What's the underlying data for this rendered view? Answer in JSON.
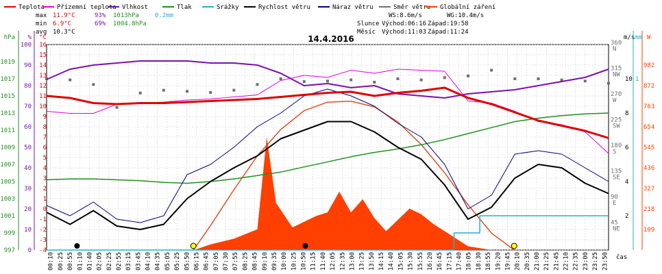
{
  "chart_data": {
    "type": "line",
    "title": "14.4.2016",
    "legend": [
      {
        "label": "Teplota",
        "color": "#e00000"
      },
      {
        "label": "Přízemní teplota",
        "color": "#e000e0"
      },
      {
        "label": "Vlhkost",
        "color": "#7a10b0"
      },
      {
        "label": "Tlak",
        "color": "#209020"
      },
      {
        "label": "Srážky",
        "color": "#20b0d0"
      },
      {
        "label": "Rychlost větru",
        "color": "#000000"
      },
      {
        "label": "Náraz větru",
        "color": "#000080"
      },
      {
        "label": "Směr větru",
        "color": "#707070"
      },
      {
        "label": "Globální záření",
        "color": "#ff4000"
      }
    ],
    "stats": {
      "max": {
        "label": "max",
        "temp": "11.9°C",
        "hum": "93%",
        "press": "1013hPa",
        "rain": "0.2mm"
      },
      "min": {
        "label": "min",
        "temp": "6.9°C",
        "hum": "69%",
        "press": "1004.8hPa"
      },
      "avg": {
        "label": "avg",
        "temp": "10.3°C"
      }
    },
    "info": {
      "ws": "WS:8.6m/s",
      "wg": "WG:10.4m/s",
      "sun_label": "Slunce",
      "sun_rise": "Východ:06:16",
      "sun_set": "Západ:19:58",
      "moon_label": "Měsíc",
      "moon_rise": "Východ:11:03",
      "moon_set": "Západ:11:24"
    },
    "axes": {
      "hpa": {
        "unit": "hPa",
        "ticks": [
          "1019",
          "1017",
          "1015",
          "1013",
          "1011",
          "1009",
          "1007",
          "1005",
          "1003",
          "1001",
          "999",
          "997"
        ],
        "range": [
          997,
          1021
        ]
      },
      "pct": {
        "unit": "%",
        "ticks": [
          "100",
          "90",
          "80",
          "70",
          "60",
          "50",
          "40",
          "30",
          "20",
          "10",
          "0"
        ],
        "range": [
          0,
          100
        ]
      },
      "degc": {
        "unit": "°C",
        "ticks": [
          "16",
          "15",
          "14",
          "13",
          "12",
          "11",
          "10",
          "9",
          "8",
          "7",
          "6",
          "5",
          "4",
          "3",
          "2",
          "1",
          "0",
          "-1",
          "-2",
          "-3",
          "-4"
        ],
        "range": [
          -4,
          16
        ]
      },
      "dir": {
        "unit": "",
        "ticks": [
          {
            "v": "360",
            "l": "N"
          },
          {
            "v": "315",
            "l": "NW"
          },
          {
            "v": "270",
            "l": "W"
          },
          {
            "v": "225",
            "l": "SW"
          },
          {
            "v": "180",
            "l": "S"
          },
          {
            "v": "135",
            "l": "SE"
          },
          {
            "v": "90",
            "l": "E"
          },
          {
            "v": "45",
            "l": "NE"
          }
        ],
        "range": [
          0,
          360
        ]
      },
      "ms": {
        "unit": "m/s",
        "ticks": [
          "10",
          "8",
          "6",
          "4",
          "2"
        ],
        "range": [
          0,
          12
        ]
      },
      "mm": {
        "unit": "mm",
        "ticks": [
          "1"
        ],
        "range": [
          0,
          1.2
        ]
      },
      "w": {
        "unit": "W",
        "ticks": [
          "982",
          "872",
          "763",
          "654",
          "545",
          "436",
          "327",
          "218",
          "109"
        ],
        "range": [
          0,
          1091
        ]
      },
      "x_label": "čas",
      "x_ticks": [
        "00:10",
        "00:25",
        "00:55",
        "01:10",
        "01:40",
        "02:05",
        "02:25",
        "02:55",
        "03:15",
        "03:45",
        "04:10",
        "04:35",
        "05:05",
        "05:25",
        "05:50",
        "06:15",
        "06:45",
        "07:05",
        "07:30",
        "07:55",
        "08:25",
        "08:45",
        "09:10",
        "09:35",
        "10:00",
        "10:25",
        "10:50",
        "11:15",
        "11:40",
        "12:05",
        "12:35",
        "13:00",
        "13:25",
        "13:50",
        "14:15",
        "14:40",
        "15:05",
        "15:30",
        "15:55",
        "16:20",
        "16:45",
        "17:15",
        "17:40",
        "18:05",
        "18:30",
        "18:55",
        "19:20",
        "19:45",
        "20:10",
        "20:35",
        "21:00",
        "21:25",
        "21:45",
        "22:10",
        "22:35",
        "23:00",
        "23:25",
        "23:50"
      ]
    },
    "series": [
      {
        "name": "Teplota",
        "unit": "°C",
        "x_hours": [
          0,
          1,
          2,
          3,
          4,
          5,
          6,
          7,
          8,
          9,
          10,
          11,
          12,
          13,
          14,
          15,
          16,
          17,
          18,
          19,
          20,
          21,
          22,
          23,
          24
        ],
        "values": [
          11.0,
          10.8,
          10.3,
          10.2,
          10.3,
          10.3,
          10.4,
          10.5,
          10.6,
          10.7,
          10.9,
          11.1,
          11.3,
          11.4,
          11.0,
          11.3,
          11.5,
          11.8,
          10.8,
          10.2,
          9.4,
          8.6,
          8.1,
          7.6,
          6.9
        ]
      },
      {
        "name": "Přízemní teplota",
        "unit": "°C",
        "x_hours": [
          0,
          1,
          2,
          3,
          4,
          5,
          6,
          7,
          8,
          9,
          10,
          11,
          12,
          13,
          14,
          15,
          16,
          17,
          18,
          19,
          20,
          21,
          22,
          23,
          24
        ],
        "values": [
          9.5,
          9.3,
          9.3,
          10.2,
          10.3,
          10.4,
          10.6,
          10.7,
          10.9,
          11.1,
          12.5,
          13.0,
          12.8,
          13.5,
          13.2,
          13.6,
          13.5,
          13.4,
          10.5,
          10.3,
          9.5,
          8.5,
          8.2,
          7.5,
          5.4
        ]
      },
      {
        "name": "Vlhkost",
        "unit": "%",
        "x_hours": [
          0,
          1,
          2,
          3,
          4,
          5,
          6,
          7,
          8,
          9,
          10,
          11,
          12,
          13,
          14,
          15,
          16,
          17,
          18,
          19,
          20,
          21,
          22,
          23,
          24
        ],
        "values": [
          83,
          88,
          90,
          91,
          92,
          92,
          92,
          91,
          91,
          90,
          86,
          80,
          81,
          79,
          80,
          76,
          75,
          74,
          76,
          77,
          78,
          80,
          82,
          84,
          88
        ]
      },
      {
        "name": "Tlak",
        "unit": "hPa",
        "x_hours": [
          0,
          1,
          2,
          3,
          4,
          5,
          6,
          7,
          8,
          9,
          10,
          11,
          12,
          13,
          14,
          15,
          16,
          17,
          18,
          19,
          20,
          21,
          22,
          23,
          24
        ],
        "values": [
          1005.2,
          1005.3,
          1005.3,
          1005.2,
          1005.1,
          1004.9,
          1004.8,
          1005.0,
          1005.3,
          1005.7,
          1006.1,
          1006.7,
          1007.3,
          1007.9,
          1008.4,
          1008.8,
          1009.3,
          1009.9,
          1010.6,
          1011.3,
          1012.0,
          1012.4,
          1012.7,
          1012.9,
          1013.0
        ]
      },
      {
        "name": "Srážky",
        "unit": "mm",
        "x_hours": [
          0,
          17.4,
          17.4,
          18.5,
          18.5,
          19.3,
          19.3,
          24
        ],
        "values": [
          0,
          0,
          0.1,
          0.1,
          0.2,
          0.2,
          0.2,
          0.2
        ]
      },
      {
        "name": "Rychlost větru",
        "unit": "m/s",
        "x_hours": [
          0,
          1,
          2,
          3,
          4,
          5,
          6,
          7,
          8,
          9,
          10,
          11,
          12,
          13,
          14,
          15,
          16,
          17,
          18,
          19,
          20,
          21,
          22,
          23,
          24
        ],
        "values": [
          2.2,
          1.5,
          2.3,
          1.4,
          1.2,
          1.5,
          3.0,
          4.0,
          4.8,
          5.5,
          6.5,
          7.0,
          7.5,
          7.5,
          6.9,
          6.0,
          5.3,
          3.8,
          1.8,
          2.5,
          4.2,
          5.0,
          4.8,
          3.9,
          3.3
        ]
      },
      {
        "name": "Náraz větru",
        "unit": "m/s",
        "x_hours": [
          0,
          1,
          2,
          3,
          4,
          5,
          6,
          7,
          8,
          9,
          10,
          11,
          12,
          13,
          14,
          15,
          16,
          17,
          18,
          19,
          20,
          21,
          22,
          23,
          24
        ],
        "values": [
          2.6,
          2.0,
          2.8,
          1.8,
          1.6,
          2.0,
          4.4,
          5.0,
          6.0,
          7.2,
          8.0,
          9.0,
          9.4,
          9.0,
          8.4,
          7.4,
          6.6,
          5.0,
          2.4,
          3.2,
          5.6,
          5.8,
          5.6,
          4.8,
          4.0
        ]
      },
      {
        "name": "Směr větru",
        "unit": "°",
        "x_hours": [
          0,
          1,
          2,
          3,
          4,
          5,
          6,
          7,
          8,
          9,
          10,
          11,
          12,
          13,
          14,
          15,
          16,
          17,
          18,
          19,
          20,
          21,
          22,
          23,
          24
        ],
        "values": [
          300,
          298,
          290,
          250,
          275,
          280,
          278,
          276,
          280,
          290,
          300,
          295,
          296,
          298,
          294,
          300,
          298,
          302,
          305,
          315,
          300,
          300,
          298,
          296,
          292
        ]
      },
      {
        "name": "Globální záření",
        "unit": "W",
        "x_hours": [
          6.3,
          7,
          8,
          9,
          9.4,
          9.8,
          10.5,
          11,
          11.5,
          12,
          12.5,
          13,
          13.5,
          14,
          14.5,
          15,
          15.5,
          16,
          16.5,
          17,
          17.5,
          18,
          19
        ],
        "values": [
          0,
          30,
          60,
          110,
          600,
          250,
          120,
          150,
          180,
          200,
          310,
          200,
          270,
          170,
          100,
          160,
          220,
          190,
          140,
          100,
          60,
          20,
          0
        ]
      },
      {
        "name": "Theoretical solar radiation",
        "unit": "W",
        "x_hours": [
          6.27,
          7,
          8,
          9,
          10,
          11,
          12,
          13,
          14,
          15,
          16,
          17,
          18,
          19,
          19.97
        ],
        "values": [
          0,
          130,
          320,
          500,
          640,
          740,
          785,
          790,
          760,
          680,
          560,
          410,
          240,
          90,
          0
        ]
      }
    ],
    "markers": [
      {
        "kind": "moon",
        "x_hours": 1.3
      },
      {
        "kind": "sun",
        "x_hours": 6.27
      },
      {
        "kind": "moon",
        "x_hours": 11.05
      },
      {
        "kind": "sun",
        "x_hours": 19.97
      }
    ]
  }
}
